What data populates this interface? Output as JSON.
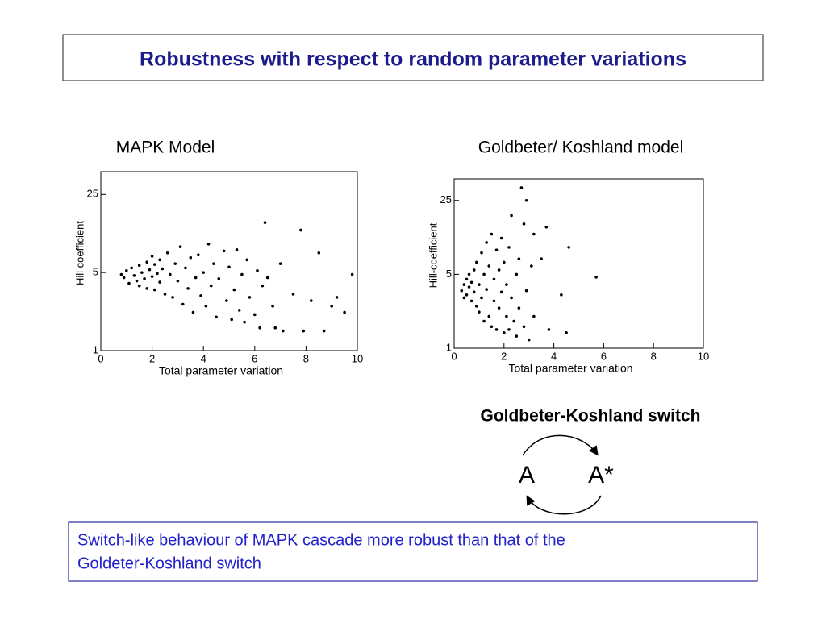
{
  "title": "Robustness with respect to random parameter variations",
  "switch": {
    "title": "Goldbeter-Koshland switch",
    "left": "A",
    "right": "A*"
  },
  "caption": [
    "Switch-like behaviour of MAPK cascade more robust than that of the",
    "Goldeter-Koshland switch"
  ],
  "chart_data": [
    {
      "type": "scatter",
      "title": "MAPK Model",
      "xlabel": "Total parameter variation",
      "ylabel": "Hill coefficient",
      "color": "#000000",
      "ylog": true,
      "xlim": [
        0,
        10
      ],
      "xticks": [
        0,
        2,
        4,
        6,
        8,
        10
      ],
      "ylim": [
        1,
        40
      ],
      "yticks": [
        1,
        5,
        25
      ],
      "x": [
        0.8,
        0.9,
        1.0,
        1.1,
        1.2,
        1.3,
        1.4,
        1.5,
        1.5,
        1.6,
        1.7,
        1.8,
        1.8,
        1.9,
        2.0,
        2.0,
        2.1,
        2.1,
        2.2,
        2.3,
        2.3,
        2.4,
        2.5,
        2.6,
        2.7,
        2.8,
        2.9,
        3.0,
        3.1,
        3.2,
        3.3,
        3.4,
        3.5,
        3.6,
        3.7,
        3.8,
        3.9,
        4.0,
        4.1,
        4.2,
        4.3,
        4.4,
        4.5,
        4.6,
        4.8,
        4.9,
        5.0,
        5.1,
        5.2,
        5.3,
        5.4,
        5.5,
        5.6,
        5.7,
        5.8,
        6.0,
        6.1,
        6.2,
        6.3,
        6.4,
        6.5,
        6.7,
        6.8,
        7.0,
        7.1,
        7.5,
        7.8,
        7.9,
        8.2,
        8.5,
        8.7,
        9.0,
        9.2,
        9.5,
        9.8
      ],
      "y": [
        4.8,
        4.5,
        5.2,
        4.0,
        5.5,
        4.7,
        4.2,
        5.8,
        3.8,
        5.0,
        4.4,
        6.2,
        3.6,
        5.3,
        4.6,
        7.0,
        3.5,
        5.9,
        4.9,
        6.5,
        4.1,
        5.4,
        3.2,
        7.5,
        4.8,
        3.0,
        6.0,
        4.2,
        8.5,
        2.6,
        5.5,
        3.6,
        6.8,
        2.2,
        4.5,
        7.2,
        3.1,
        5.0,
        2.5,
        9.0,
        3.8,
        6.0,
        2.0,
        4.4,
        7.8,
        2.8,
        5.6,
        1.9,
        3.5,
        8.0,
        2.3,
        4.8,
        1.8,
        6.5,
        3.0,
        2.1,
        5.2,
        1.6,
        3.8,
        14.0,
        4.5,
        2.5,
        1.6,
        6.0,
        1.5,
        3.2,
        12.0,
        1.5,
        2.8,
        7.5,
        1.5,
        2.5,
        3.0,
        2.2,
        4.8
      ]
    },
    {
      "type": "scatter",
      "title": "Goldbeter/ Koshland model",
      "xlabel": "Total parameter variation",
      "ylabel": "Hill-coefficient",
      "color": "#000000",
      "ylog": true,
      "xlim": [
        0,
        10
      ],
      "xticks": [
        0,
        2,
        4,
        6,
        8,
        10
      ],
      "ylim": [
        1,
        40
      ],
      "yticks": [
        1,
        5,
        25
      ],
      "x": [
        0.3,
        0.4,
        0.4,
        0.5,
        0.5,
        0.6,
        0.6,
        0.7,
        0.7,
        0.8,
        0.8,
        0.9,
        0.9,
        1.0,
        1.0,
        1.1,
        1.1,
        1.2,
        1.2,
        1.3,
        1.3,
        1.4,
        1.4,
        1.5,
        1.5,
        1.6,
        1.6,
        1.7,
        1.7,
        1.8,
        1.8,
        1.9,
        1.9,
        2.0,
        2.0,
        2.1,
        2.1,
        2.2,
        2.2,
        2.3,
        2.3,
        2.4,
        2.5,
        2.5,
        2.6,
        2.6,
        2.7,
        2.8,
        2.8,
        2.9,
        2.9,
        3.0,
        3.1,
        3.2,
        3.2,
        3.5,
        3.7,
        3.8,
        4.3,
        4.5,
        4.6,
        5.7
      ],
      "y": [
        3.5,
        4.0,
        3.0,
        4.5,
        3.2,
        5.0,
        3.8,
        2.8,
        4.2,
        5.5,
        3.4,
        2.5,
        6.5,
        4.0,
        2.2,
        8.0,
        3.0,
        5.0,
        1.8,
        10.0,
        3.6,
        2.0,
        6.0,
        12.0,
        1.6,
        4.5,
        2.8,
        8.5,
        1.5,
        5.5,
        2.4,
        3.4,
        11.0,
        1.4,
        6.5,
        2.0,
        4.0,
        9.0,
        1.5,
        3.0,
        18.0,
        1.8,
        5.0,
        1.3,
        2.4,
        7.0,
        33.0,
        1.6,
        15.0,
        3.5,
        25.0,
        1.2,
        6.0,
        2.0,
        12.0,
        7.0,
        14.0,
        1.5,
        3.2,
        1.4,
        9.0,
        4.7
      ]
    }
  ]
}
